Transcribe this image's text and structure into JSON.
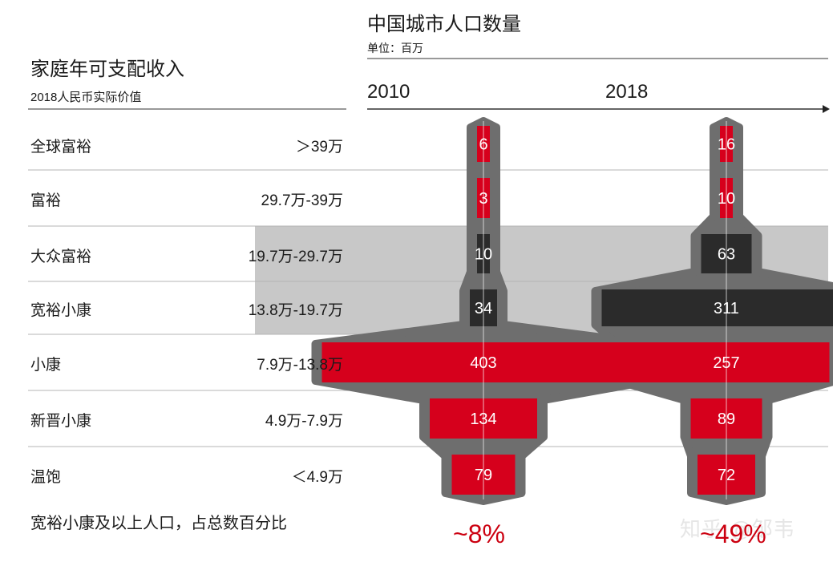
{
  "left_title": "家庭年可支配收入",
  "left_subtitle": "2018人民币实际价值",
  "rows": [
    {
      "label": "全球富裕",
      "range": "＞39万"
    },
    {
      "label": "富裕",
      "range": "29.7万-39万"
    },
    {
      "label": "大众富裕",
      "range": "19.7万-29.7万"
    },
    {
      "label": "宽裕小康",
      "range": "13.8万-19.7万"
    },
    {
      "label": "小康",
      "range": "7.9万-13.8万"
    },
    {
      "label": "新晋小康",
      "range": "4.9万-7.9万"
    },
    {
      "label": "温饱",
      "range": "＜4.9万"
    }
  ],
  "footer_label": "宽裕小康及以上人口，占总数百分比",
  "watermark": "知乎 @邹韦",
  "colors": {
    "red": "#d6001c",
    "dark": "#2b2b2b",
    "grey_body": "#6e6e6e",
    "highlight_band": "#c8c8c8",
    "pct_red": "#cc0010"
  },
  "chart_data": {
    "type": "bar",
    "title": "中国城市人口数量",
    "subtitle": "单位：百万",
    "categories": [
      "全球富裕",
      "富裕",
      "大众富裕",
      "宽裕小康",
      "小康",
      "新晋小康",
      "温饱"
    ],
    "series": [
      {
        "name": "2010",
        "values": [
          6,
          3,
          10,
          34,
          403,
          134,
          79
        ]
      },
      {
        "name": "2018",
        "values": [
          16,
          10,
          63,
          311,
          257,
          89,
          72
        ]
      }
    ],
    "highlighted_categories": [
      "大众富裕",
      "宽裕小康"
    ],
    "share_labels": [
      "~8%",
      "~49%"
    ]
  }
}
